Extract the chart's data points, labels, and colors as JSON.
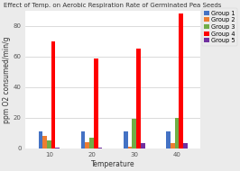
{
  "title": "Effect of Temp. on Aerobic Respiration Rate of Germinated Pea Seeds",
  "xlabel": "Temperature",
  "ylabel": "ppm O2 consumed/min/g",
  "temperatures": [
    10,
    20,
    30,
    40
  ],
  "groups": [
    "Group 1",
    "Group 2",
    "Group 3",
    "Group 4",
    "Group 5"
  ],
  "colors": [
    "#4472C4",
    "#ED7D31",
    "#70AD47",
    "#FF0000",
    "#7030A0"
  ],
  "values": [
    [
      11,
      8,
      5,
      70,
      0.3
    ],
    [
      11,
      4,
      7,
      59,
      0.3
    ],
    [
      11,
      1,
      19,
      65,
      3
    ],
    [
      11,
      3,
      20,
      88,
      3
    ]
  ],
  "ylim": [
    0,
    90
  ],
  "yticks": [
    0,
    20,
    40,
    60,
    80
  ],
  "background_color": "#ebebeb",
  "plot_bg_color": "#ffffff",
  "title_fontsize": 5.0,
  "axis_fontsize": 5.5,
  "tick_fontsize": 5.0,
  "legend_fontsize": 4.8
}
